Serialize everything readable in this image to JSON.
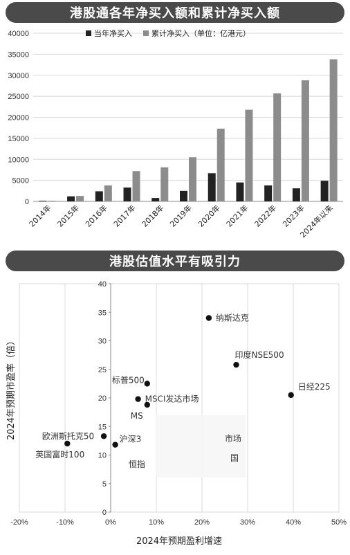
{
  "top_banner": {
    "title": "港股通各年净买入额和累计净买入额"
  },
  "bottom_banner": {
    "title": "港股估值水平有吸引力"
  },
  "colors": {
    "annual": "#222222",
    "cumulative": "#8c8c8c",
    "banner": "#4a4a4a",
    "grid": "#d8d8d8",
    "point": "#111111"
  },
  "chart_data": [
    {
      "type": "bar",
      "legend": [
        "当年净买入",
        "累计净买入（单位：亿港元）"
      ],
      "categories": [
        "2014年",
        "2015年",
        "2016年",
        "2017年",
        "2018年",
        "2019年",
        "2020年",
        "2021年",
        "2022年",
        "2023年",
        "2024年以来"
      ],
      "series": [
        {
          "name": "当年净买入",
          "values": [
            150,
            1200,
            2400,
            3300,
            800,
            2500,
            6700,
            4500,
            3800,
            3100,
            4900
          ]
        },
        {
          "name": "累计净买入（单位：亿港元）",
          "values": [
            150,
            1300,
            3800,
            7200,
            8100,
            10500,
            17300,
            21800,
            25700,
            28800,
            33800
          ]
        }
      ],
      "yticks": [
        0,
        5000,
        10000,
        15000,
        20000,
        25000,
        30000,
        35000,
        40000
      ],
      "ylim": [
        0,
        40000
      ]
    },
    {
      "type": "scatter",
      "xlabel": "2024年预期盈利增速",
      "ylabel": "2024年预期市盈率（倍）",
      "xlim": [
        -20,
        50
      ],
      "ylim": [
        0,
        40
      ],
      "xticks": [
        "-20%",
        "-10%",
        "0%",
        "10%",
        "20%",
        "30%",
        "40%",
        "50%"
      ],
      "yticks": [
        "0",
        "5",
        "10",
        "15",
        "20",
        "25",
        "30",
        "35",
        "40"
      ],
      "points": [
        {
          "label": "纳斯达克",
          "x": 21.5,
          "y": 34.0
        },
        {
          "label": "印度NSE500",
          "x": 27.5,
          "y": 25.8
        },
        {
          "label": "日经225",
          "x": 39.5,
          "y": 20.5
        },
        {
          "label": "标普500",
          "x": 8.0,
          "y": 22.5
        },
        {
          "label": "MSCI发达市场",
          "x": 6.0,
          "y": 19.8
        },
        {
          "label": "MS",
          "x": 8.0,
          "y": 18.8
        },
        {
          "label": "欧洲斯托克50",
          "x": -1.5,
          "y": 13.3
        },
        {
          "label": "沪深3",
          "x": 1.0,
          "y": 11.8
        },
        {
          "label": "英国富时100",
          "x": -9.5,
          "y": 12.0
        },
        {
          "label": "市场",
          "x": null,
          "y": null
        },
        {
          "label": "国",
          "x": null,
          "y": null
        },
        {
          "label": "恒指",
          "x": null,
          "y": null
        }
      ]
    }
  ]
}
